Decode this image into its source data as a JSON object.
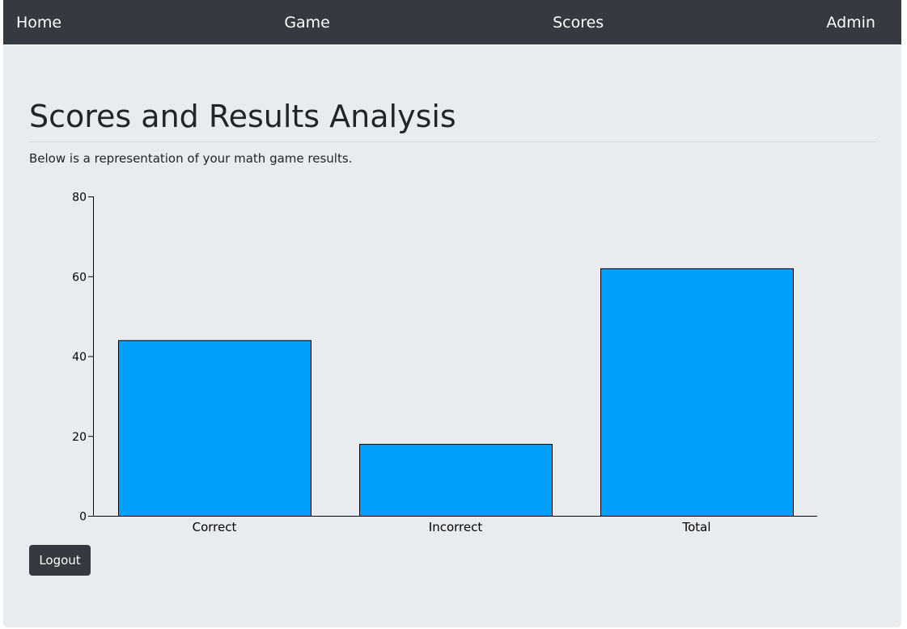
{
  "nav": {
    "items": [
      {
        "label": "Home"
      },
      {
        "label": "Game"
      },
      {
        "label": "Scores"
      },
      {
        "label": "Admin"
      }
    ]
  },
  "main": {
    "title": "Scores and Results Analysis",
    "lead": "Below is a representation of your math game results.",
    "logout_label": "Logout"
  },
  "colors": {
    "navbar": "#343a40",
    "jumbotron": "#e9ecef",
    "bar_fill": "#00a0fc",
    "bar_stroke": "#000000"
  },
  "chart_data": {
    "type": "bar",
    "categories": [
      "Correct",
      "Incorrect",
      "Total"
    ],
    "values": [
      44,
      18,
      62
    ],
    "ylim": [
      0,
      80
    ],
    "yticks": [
      0,
      20,
      40,
      60,
      80
    ],
    "title": "",
    "xlabel": "",
    "ylabel": "",
    "grid": false,
    "legend": "none"
  }
}
